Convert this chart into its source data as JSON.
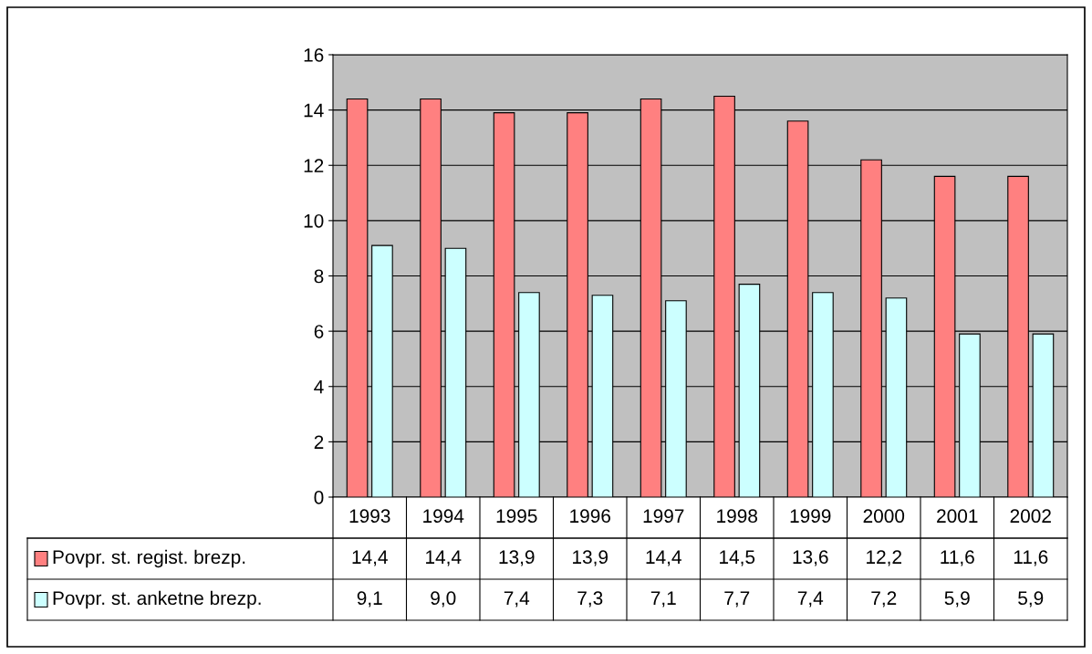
{
  "chart_data": {
    "type": "bar",
    "categories": [
      "1993",
      "1994",
      "1995",
      "1996",
      "1997",
      "1998",
      "1999",
      "2000",
      "2001",
      "2002"
    ],
    "series": [
      {
        "name": "Povpr. st. regist. brezp.",
        "color": "#ff8080",
        "values": [
          14.4,
          14.4,
          13.9,
          13.9,
          14.4,
          14.5,
          13.6,
          12.2,
          11.6,
          11.6
        ],
        "value_labels": [
          "14,4",
          "14,4",
          "13,9",
          "13,9",
          "14,4",
          "14,5",
          "13,6",
          "12,2",
          "11,6",
          "11,6"
        ]
      },
      {
        "name": "Povpr. st. anketne brezp.",
        "color": "#ccffff",
        "values": [
          9.1,
          9.0,
          7.4,
          7.3,
          7.1,
          7.7,
          7.4,
          7.2,
          5.9,
          5.9
        ],
        "value_labels": [
          "9,1",
          "9,0",
          "7,4",
          "7,3",
          "7,1",
          "7,7",
          "7,4",
          "7,2",
          "5,9",
          "5,9"
        ]
      }
    ],
    "ylim": [
      0,
      16
    ],
    "yticks": [
      0,
      2,
      4,
      6,
      8,
      10,
      12,
      14,
      16
    ],
    "grid": "y",
    "legend": "bottom left"
  }
}
